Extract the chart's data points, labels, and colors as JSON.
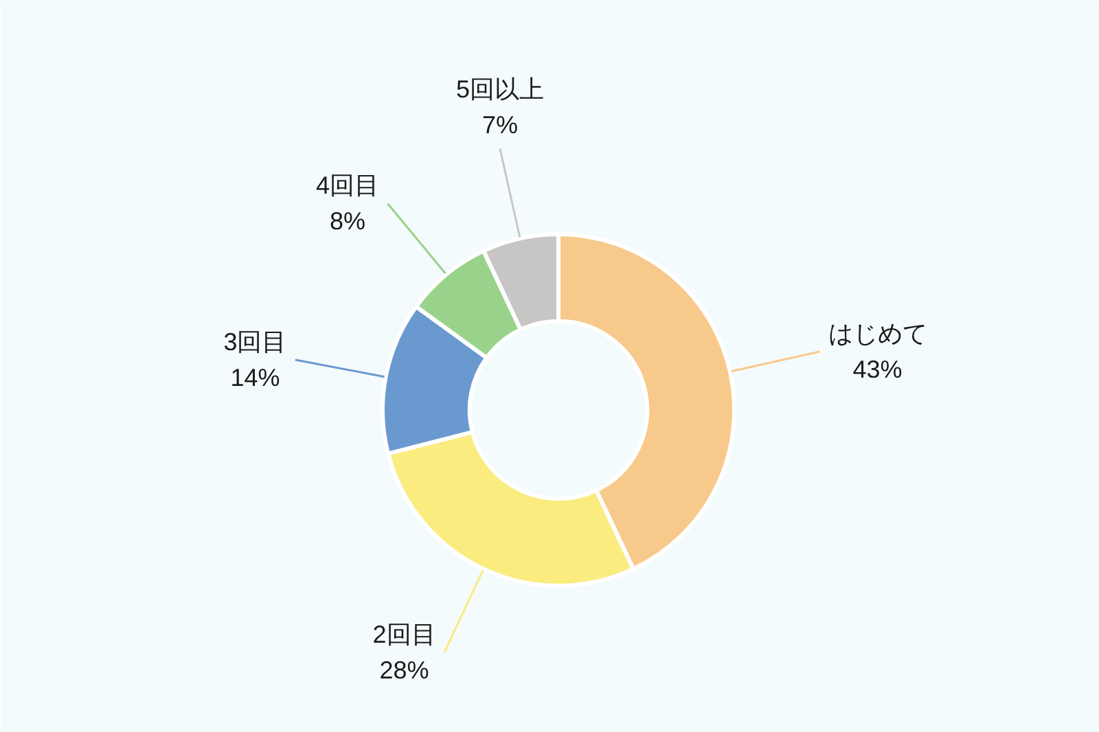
{
  "chart_data": {
    "type": "donut",
    "categories": [
      "はじめて",
      "2回目",
      "3回目",
      "4回目",
      "5回以上"
    ],
    "values": [
      43,
      28,
      14,
      8,
      7
    ],
    "colors": [
      "#f7c98b",
      "#fbec80",
      "#6a99d0",
      "#99d38b",
      "#c8c6c5"
    ],
    "value_labels": [
      "43%",
      "28%",
      "14%",
      "8%",
      "7%"
    ]
  }
}
